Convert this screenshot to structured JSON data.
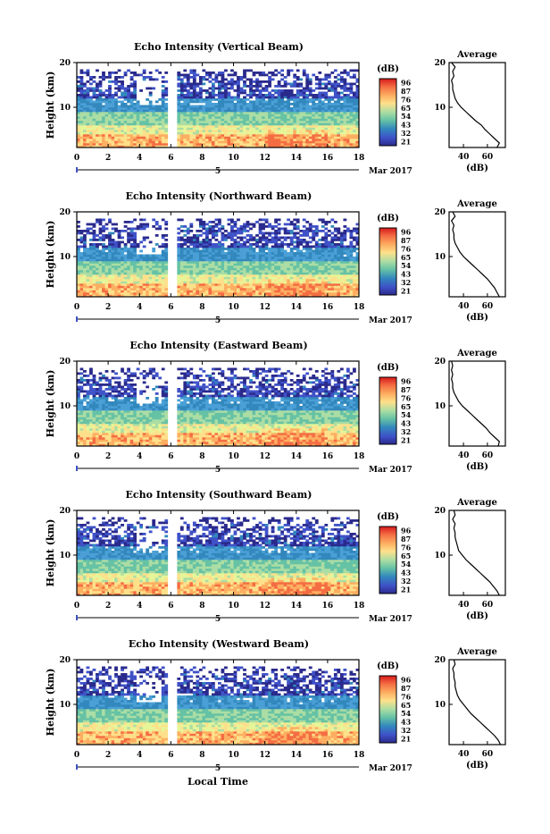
{
  "figure": {
    "xlabel": "Local Time",
    "date_label": "Mar 2017",
    "day_label": "5",
    "ylabel": "Height (km)",
    "avg_title": "Average",
    "avg_xlabel": "(dB)",
    "cbar_title": "(dB)"
  },
  "chart_data": [
    {
      "type": "heatmap",
      "title": "Echo Intensity (Vertical Beam)",
      "xticks": [
        "0",
        "2",
        "4",
        "6",
        "8",
        "10",
        "12",
        "14",
        "16",
        "18"
      ],
      "yticks": [
        "10",
        "20"
      ],
      "colorbar_ticks": [
        "96",
        "87",
        "76",
        "65",
        "54",
        "43",
        "32",
        "21"
      ],
      "avg_xticks": [
        "40",
        "60"
      ],
      "avg_profile": {
        "height": [
          1,
          2,
          3,
          4,
          5,
          6,
          7,
          8,
          9,
          10,
          11,
          12,
          13,
          14,
          15,
          16,
          17,
          18,
          19,
          20
        ],
        "value": [
          68,
          70,
          66,
          62,
          58,
          55,
          50,
          46,
          42,
          38,
          35,
          33,
          32,
          31,
          31,
          30,
          32,
          31,
          33,
          30
        ]
      }
    },
    {
      "type": "heatmap",
      "title": "Echo Intensity (Northward Beam)",
      "xticks": [
        "0",
        "2",
        "4",
        "6",
        "8",
        "10",
        "12",
        "14",
        "16",
        "18"
      ],
      "yticks": [
        "10",
        "20"
      ],
      "colorbar_ticks": [
        "96",
        "87",
        "76",
        "65",
        "54",
        "43",
        "32",
        "21"
      ],
      "avg_xticks": [
        "40",
        "60"
      ],
      "avg_profile": {
        "height": [
          1,
          2,
          3,
          4,
          5,
          6,
          7,
          8,
          9,
          10,
          11,
          12,
          13,
          14,
          15,
          16,
          17,
          18,
          19,
          20
        ],
        "value": [
          70,
          68,
          66,
          63,
          60,
          56,
          52,
          48,
          44,
          40,
          37,
          35,
          33,
          32,
          32,
          31,
          32,
          30,
          33,
          31
        ]
      }
    },
    {
      "type": "heatmap",
      "title": "Echo Intensity (Eastward Beam)",
      "xticks": [
        "0",
        "2",
        "4",
        "6",
        "8",
        "10",
        "12",
        "14",
        "16",
        "18"
      ],
      "yticks": [
        "10",
        "20"
      ],
      "colorbar_ticks": [
        "96",
        "87",
        "76",
        "65",
        "54",
        "43",
        "32",
        "21"
      ],
      "avg_xticks": [
        "40",
        "60"
      ],
      "avg_profile": {
        "height": [
          1,
          2,
          3,
          4,
          5,
          6,
          7,
          8,
          9,
          10,
          11,
          12,
          13,
          14,
          15,
          16,
          17,
          18,
          19,
          20
        ],
        "value": [
          69,
          70,
          66,
          62,
          59,
          55,
          51,
          47,
          43,
          39,
          36,
          34,
          32,
          31,
          31,
          30,
          31,
          30,
          31,
          30
        ]
      }
    },
    {
      "type": "heatmap",
      "title": "Echo Intensity (Southward Beam)",
      "xticks": [
        "0",
        "2",
        "4",
        "6",
        "8",
        "10",
        "12",
        "14",
        "16",
        "18"
      ],
      "yticks": [
        "10",
        "20"
      ],
      "colorbar_ticks": [
        "96",
        "87",
        "76",
        "65",
        "54",
        "43",
        "32",
        "21"
      ],
      "avg_xticks": [
        "40",
        "60"
      ],
      "avg_profile": {
        "height": [
          1,
          2,
          3,
          4,
          5,
          6,
          7,
          8,
          9,
          10,
          11,
          12,
          13,
          14,
          15,
          16,
          17,
          18,
          19,
          20
        ],
        "value": [
          70,
          68,
          65,
          62,
          58,
          54,
          50,
          46,
          42,
          39,
          36,
          35,
          34,
          33,
          33,
          32,
          33,
          31,
          33,
          32
        ]
      }
    },
    {
      "type": "heatmap",
      "title": "Echo Intensity (Westward Beam)",
      "xticks": [
        "0",
        "2",
        "4",
        "6",
        "8",
        "10",
        "12",
        "14",
        "16",
        "18"
      ],
      "yticks": [
        "10",
        "20"
      ],
      "colorbar_ticks": [
        "96",
        "87",
        "76",
        "65",
        "54",
        "43",
        "32",
        "21"
      ],
      "avg_xticks": [
        "40",
        "60"
      ],
      "avg_profile": {
        "height": [
          1,
          2,
          3,
          4,
          5,
          6,
          7,
          8,
          9,
          10,
          11,
          12,
          13,
          14,
          15,
          16,
          17,
          18,
          19,
          20
        ],
        "value": [
          71,
          69,
          66,
          62,
          58,
          54,
          50,
          46,
          43,
          40,
          37,
          35,
          34,
          33,
          33,
          32,
          32,
          31,
          33,
          32
        ]
      }
    }
  ],
  "colorbar_colors": [
    "#d7191c",
    "#f46d43",
    "#fdae61",
    "#fee08b",
    "#e6f598",
    "#abdda4",
    "#66c2a5",
    "#3288bd",
    "#3f52c8",
    "#2a2a8c"
  ]
}
